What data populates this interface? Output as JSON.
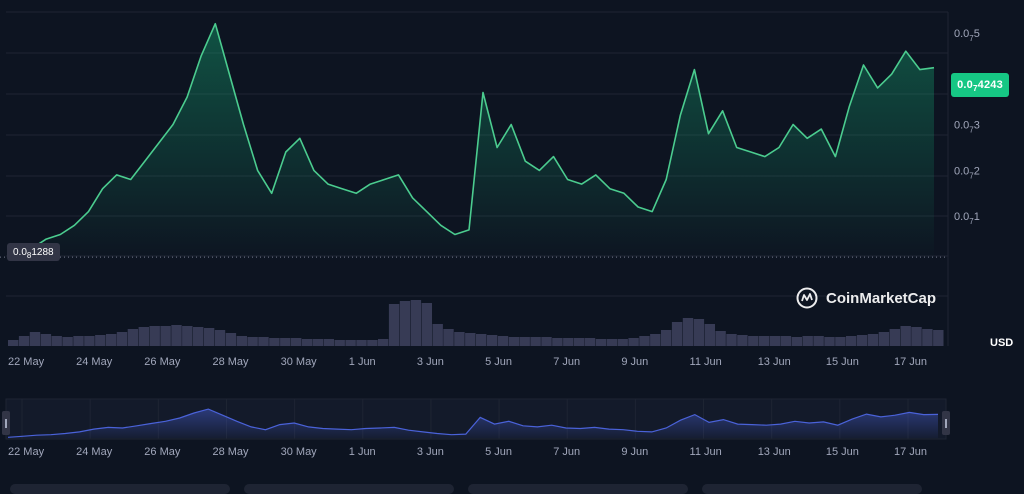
{
  "price_badge": {
    "main": "0.0",
    "sub": "7",
    "rest": "4243"
  },
  "start_badge": {
    "main": "0.0",
    "sub": "8",
    "rest": "1288"
  },
  "watermark": {
    "brand": "CoinMarketCap"
  },
  "currency": "USD",
  "colors": {
    "background": "#0d1421",
    "line": "#4bcc8f",
    "accent": "#16c784",
    "volume": "#3c3f5b",
    "navigator_line": "#4a62d9",
    "grid": "#1e2433"
  },
  "chart_data": [
    {
      "type": "line",
      "name": "price",
      "yaxis_ticks": [
        {
          "value": 0.1,
          "main": "0.0",
          "sub": "7",
          "rest": "1"
        },
        {
          "value": 0.2,
          "main": "0.0",
          "sub": "7",
          "rest": "2"
        },
        {
          "value": 0.3,
          "main": "0.0",
          "sub": "7",
          "rest": "3"
        },
        {
          "value": 0.4,
          "main": "0.0",
          "sub": "7",
          "rest": "4"
        },
        {
          "value": 0.5,
          "main": "0.0",
          "sub": "7",
          "rest": "5"
        }
      ],
      "ylim": [
        0.0,
        0.55
      ],
      "baseline_value": 0.01288,
      "xaxis_ticks": [
        "22 May",
        "24 May",
        "26 May",
        "28 May",
        "30 May",
        "1 Jun",
        "3 Jun",
        "5 Jun",
        "7 Jun",
        "9 Jun",
        "11 Jun",
        "13 Jun",
        "15 Jun",
        "17 Jun"
      ],
      "x": [
        "22 May",
        "22 May",
        "23 May",
        "23 May",
        "24 May",
        "24 May",
        "25 May",
        "25 May",
        "26 May",
        "26 May",
        "27 May",
        "27 May",
        "28 May",
        "28 May",
        "28 May",
        "28 May",
        "29 May",
        "29 May",
        "29 May",
        "30 May",
        "30 May",
        "30 May",
        "31 May",
        "31 May",
        "1 Jun",
        "1 Jun",
        "2 Jun",
        "2 Jun",
        "3 Jun",
        "3 Jun",
        "4 Jun",
        "4 Jun",
        "4 Jun",
        "5 Jun",
        "5 Jun",
        "5 Jun",
        "6 Jun",
        "6 Jun",
        "7 Jun",
        "7 Jun",
        "8 Jun",
        "8 Jun",
        "9 Jun",
        "9 Jun",
        "10 Jun",
        "10 Jun",
        "11 Jun",
        "11 Jun",
        "11 Jun",
        "12 Jun",
        "12 Jun",
        "12 Jun",
        "13 Jun",
        "13 Jun",
        "14 Jun",
        "14 Jun",
        "15 Jun",
        "15 Jun",
        "16 Jun",
        "16 Jun",
        "16 Jun",
        "17 Jun",
        "17 Jun",
        "18 Jun",
        "18 Jun",
        "18 Jun"
      ],
      "values": [
        0.013,
        0.03,
        0.05,
        0.06,
        0.08,
        0.11,
        0.16,
        0.19,
        0.18,
        0.22,
        0.26,
        0.3,
        0.36,
        0.45,
        0.52,
        0.41,
        0.3,
        0.2,
        0.15,
        0.24,
        0.27,
        0.2,
        0.17,
        0.16,
        0.15,
        0.17,
        0.18,
        0.19,
        0.14,
        0.11,
        0.08,
        0.06,
        0.07,
        0.37,
        0.25,
        0.3,
        0.22,
        0.2,
        0.23,
        0.18,
        0.17,
        0.19,
        0.16,
        0.15,
        0.12,
        0.11,
        0.18,
        0.32,
        0.42,
        0.28,
        0.33,
        0.25,
        0.24,
        0.23,
        0.25,
        0.3,
        0.27,
        0.29,
        0.23,
        0.34,
        0.43,
        0.38,
        0.41,
        0.46,
        0.42,
        0.424
      ]
    },
    {
      "type": "bar",
      "name": "volume",
      "values": [
        0.06,
        0.1,
        0.14,
        0.12,
        0.1,
        0.09,
        0.1,
        0.1,
        0.11,
        0.12,
        0.14,
        0.17,
        0.19,
        0.2,
        0.2,
        0.21,
        0.2,
        0.19,
        0.18,
        0.16,
        0.13,
        0.1,
        0.09,
        0.09,
        0.08,
        0.08,
        0.08,
        0.07,
        0.07,
        0.07,
        0.06,
        0.06,
        0.06,
        0.06,
        0.07,
        0.42,
        0.45,
        0.46,
        0.43,
        0.22,
        0.17,
        0.14,
        0.13,
        0.12,
        0.11,
        0.1,
        0.09,
        0.09,
        0.09,
        0.09,
        0.08,
        0.08,
        0.08,
        0.08,
        0.07,
        0.07,
        0.07,
        0.08,
        0.1,
        0.12,
        0.16,
        0.24,
        0.28,
        0.27,
        0.22,
        0.15,
        0.12,
        0.11,
        0.1,
        0.1,
        0.1,
        0.1,
        0.09,
        0.1,
        0.1,
        0.09,
        0.09,
        0.1,
        0.11,
        0.12,
        0.14,
        0.17,
        0.2,
        0.19,
        0.17,
        0.16
      ]
    }
  ]
}
